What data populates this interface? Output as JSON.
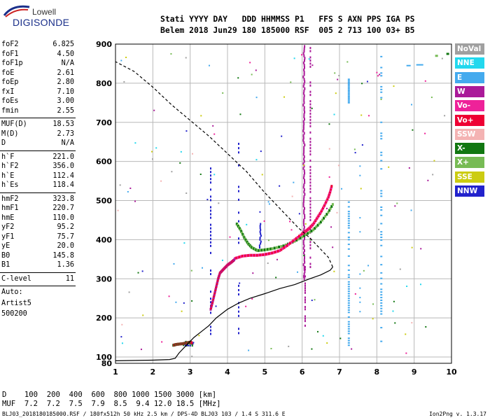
{
  "logo": {
    "line1": "Lowell",
    "line2": "DIGISONDE"
  },
  "header": {
    "line1": "Stati YYYY DAY   DDD HHMMSS P1   FFS S AXN PPS IGA PS",
    "line2": "Belem 2018 Jun29 180 185000 RSF  005 2 713 100 03+ B5"
  },
  "sidebar": {
    "group1": [
      {
        "key": "foF2",
        "value": "6.825"
      },
      {
        "key": "foF1",
        "value": "4.50"
      },
      {
        "key": "foF1p",
        "value": "N/A"
      },
      {
        "key": "foE",
        "value": "2.61"
      },
      {
        "key": "foEp",
        "value": "2.80"
      },
      {
        "key": "fxI",
        "value": "7.10"
      },
      {
        "key": "foEs",
        "value": "3.00"
      },
      {
        "key": "fmin",
        "value": "2.55"
      }
    ],
    "group2": [
      {
        "key": "MUF(D)",
        "value": "18.53"
      },
      {
        "key": "M(D)",
        "value": "2.73"
      },
      {
        "key": "D",
        "value": "N/A"
      }
    ],
    "group3": [
      {
        "key": "h`F",
        "value": "221.0"
      },
      {
        "key": "h`F2",
        "value": "356.0"
      },
      {
        "key": "h`E",
        "value": "112.4"
      },
      {
        "key": "h`Es",
        "value": "118.4"
      }
    ],
    "group4": [
      {
        "key": "hmF2",
        "value": "323.8"
      },
      {
        "key": "hmF1",
        "value": "220.7"
      },
      {
        "key": "hmE",
        "value": "110.0"
      },
      {
        "key": "yF2",
        "value": "95.2"
      },
      {
        "key": "yF1",
        "value": "75.7"
      },
      {
        "key": "yE",
        "value": "20.0"
      },
      {
        "key": "B0",
        "value": "145.8"
      },
      {
        "key": "B1",
        "value": "1.36"
      }
    ],
    "group5": [
      {
        "key": "C-level",
        "value": "11"
      }
    ],
    "group6": [
      "Auto:",
      "Artist5",
      "500200"
    ]
  },
  "legend": [
    {
      "label": "NoVal",
      "color": "#a0a0a0"
    },
    {
      "label": "NNE",
      "color": "#22d8ee"
    },
    {
      "label": "E",
      "color": "#44aaee"
    },
    {
      "label": "W",
      "color": "#aa1a99"
    },
    {
      "label": "Vo-",
      "color": "#ee2299"
    },
    {
      "label": "Vo+",
      "color": "#ee0033"
    },
    {
      "label": "SSW",
      "color": "#f4b3b3"
    },
    {
      "label": "X-",
      "color": "#117711"
    },
    {
      "label": "X+",
      "color": "#77bb55"
    },
    {
      "label": "SSE",
      "color": "#cccc11"
    },
    {
      "label": "NNW",
      "color": "#2222cc"
    }
  ],
  "bottom": {
    "d_line": "D    100  200  400  600  800 1000 1500 3000 [km]",
    "muf_line": "MUF  7.2  7.2  7.5  7.9  8.5  9.4 12.0 18.5 [MHz]"
  },
  "footer": {
    "left": "BLJ03_2018180185000.RSF / 180fx512h 50 kHz 2.5 km / DPS-4D BLJ03 103 / 1.4 S 311.6 E",
    "right": "Ion2Png v. 1.3.17"
  },
  "chart_data": {
    "type": "scatter",
    "xlim": [
      1,
      10
    ],
    "ylim": [
      80,
      900
    ],
    "x_ticks": [
      "1",
      "2",
      "3",
      "4",
      "5",
      "6",
      "7",
      "8",
      "9",
      "10"
    ],
    "y_ticks": [
      "80",
      "100",
      "200",
      "300",
      "400",
      "500",
      "600",
      "700",
      "800",
      "900"
    ],
    "grid": true,
    "profile_solid": [
      [
        1.0,
        88
      ],
      [
        2.0,
        90
      ],
      [
        2.45,
        92
      ],
      [
        2.6,
        96
      ],
      [
        2.7,
        110
      ],
      [
        2.9,
        130
      ],
      [
        3.1,
        150
      ],
      [
        3.3,
        165
      ],
      [
        3.5,
        180
      ],
      [
        3.7,
        200
      ],
      [
        4.0,
        222
      ],
      [
        4.3,
        238
      ],
      [
        4.6,
        250
      ],
      [
        5.0,
        262
      ],
      [
        5.4,
        275
      ],
      [
        5.8,
        285
      ],
      [
        6.2,
        300
      ],
      [
        6.5,
        310
      ],
      [
        6.75,
        322
      ],
      [
        6.82,
        330
      ]
    ],
    "profile_dashed": [
      [
        6.82,
        330
      ],
      [
        6.7,
        355
      ],
      [
        6.45,
        380
      ],
      [
        6.2,
        405
      ],
      [
        5.9,
        430
      ],
      [
        5.5,
        470
      ],
      [
        5.0,
        520
      ],
      [
        4.5,
        575
      ],
      [
        4.0,
        620
      ],
      [
        3.5,
        665
      ],
      [
        3.0,
        705
      ],
      [
        2.5,
        745
      ],
      [
        2.0,
        790
      ],
      [
        1.5,
        830
      ],
      [
        1.0,
        855
      ]
    ],
    "trace_f2": [
      [
        4.2,
        352
      ],
      [
        4.4,
        358
      ],
      [
        4.6,
        360
      ],
      [
        4.8,
        360
      ],
      [
        5.0,
        362
      ],
      [
        5.2,
        366
      ],
      [
        5.4,
        372
      ],
      [
        5.6,
        385
      ],
      [
        5.8,
        400
      ],
      [
        6.0,
        415
      ],
      [
        6.1,
        422
      ],
      [
        6.2,
        430
      ],
      [
        6.3,
        440
      ],
      [
        6.4,
        455
      ],
      [
        6.5,
        470
      ],
      [
        6.6,
        488
      ],
      [
        6.7,
        508
      ],
      [
        6.75,
        522
      ],
      [
        6.8,
        540
      ]
    ],
    "trace_f1": [
      [
        3.55,
        222
      ],
      [
        3.6,
        240
      ],
      [
        3.65,
        260
      ],
      [
        3.7,
        280
      ],
      [
        3.75,
        300
      ],
      [
        3.8,
        315
      ],
      [
        3.9,
        325
      ],
      [
        4.0,
        335
      ],
      [
        4.1,
        342
      ],
      [
        4.2,
        350
      ]
    ],
    "trace_x": [
      [
        4.25,
        440
      ],
      [
        4.35,
        425
      ],
      [
        4.45,
        405
      ],
      [
        4.55,
        390
      ],
      [
        4.65,
        380
      ],
      [
        4.8,
        372
      ],
      [
        5.0,
        374
      ],
      [
        5.2,
        377
      ],
      [
        5.5,
        384
      ],
      [
        5.8,
        396
      ],
      [
        6.05,
        410
      ],
      [
        6.3,
        425
      ],
      [
        6.5,
        445
      ],
      [
        6.7,
        470
      ],
      [
        6.85,
        495
      ]
    ],
    "trace_e": [
      [
        2.55,
        130
      ],
      [
        2.62,
        132
      ],
      [
        2.7,
        133
      ],
      [
        2.8,
        134
      ],
      [
        2.9,
        136
      ],
      [
        3.0,
        138
      ],
      [
        3.05,
        136
      ]
    ]
  }
}
